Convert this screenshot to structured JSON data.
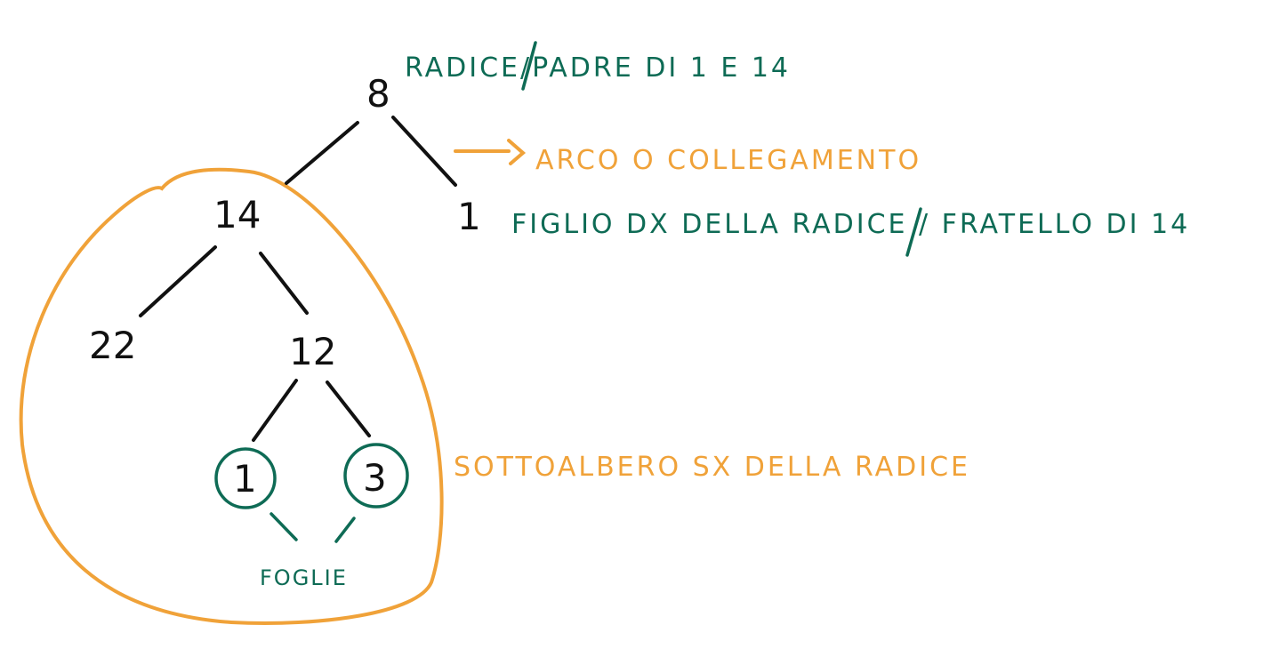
{
  "tree": {
    "root": "8",
    "left": "14",
    "right": "1",
    "left_left": "22",
    "left_right": "12",
    "leaf_left": "1",
    "leaf_right": "3"
  },
  "annotations": {
    "root_label": "RADICE/PADRE DI 1 E 14",
    "edge_label": "ARCO O COLLEGAMENTO",
    "right_child_label": "FIGLIO DX DELLA RADICE / FRATELLO DI 14",
    "subtree_label": "SOTTOALBERO SX DELLA RADICE",
    "leaves_label": "FOGLIE"
  },
  "colors": {
    "ink": "#111111",
    "green": "#0e6b55",
    "orange": "#f0a239"
  }
}
